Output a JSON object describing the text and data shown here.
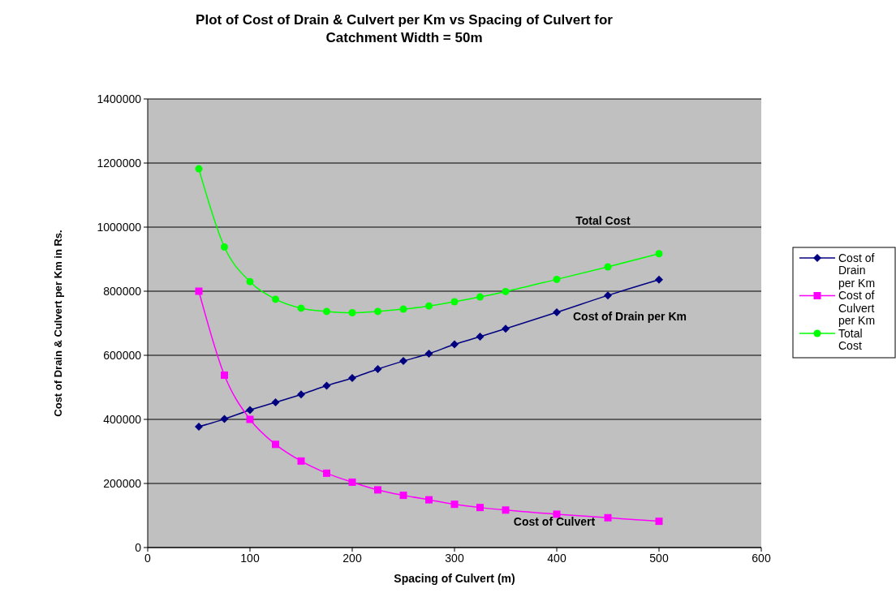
{
  "chart_data": {
    "type": "line",
    "title": "Plot of Cost of Drain & Culvert per Km vs  Spacing of Culvert  for Catchment Width = 50m",
    "xlabel": "Spacing of Culvert (m)",
    "ylabel": "Cost of Drain & Culvert per Km in Rs.",
    "x": [
      50,
      75,
      100,
      125,
      150,
      175,
      200,
      225,
      250,
      275,
      300,
      325,
      350,
      400,
      450,
      500
    ],
    "series": [
      {
        "name": "Cost of Drain per Km",
        "color": "#000080",
        "marker": "diamond",
        "values": [
          377000,
          401000,
          429000,
          453000,
          478000,
          505000,
          529000,
          557000,
          582000,
          605000,
          634000,
          658000,
          683000,
          734000,
          787000,
          836000
        ]
      },
      {
        "name": "Cost of Culvert per Km",
        "color": "#ff00ff",
        "marker": "square",
        "values": [
          800000,
          538000,
          400000,
          322000,
          270000,
          232000,
          204000,
          180000,
          163000,
          149000,
          135000,
          125000,
          117000,
          104000,
          93000,
          82000
        ]
      },
      {
        "name": "Total Cost",
        "color": "#00ff00",
        "marker": "circle",
        "values": [
          1182000,
          938000,
          830000,
          775000,
          747000,
          737000,
          733000,
          737000,
          744000,
          754000,
          767000,
          782000,
          799000,
          837000,
          876000,
          917000
        ]
      }
    ],
    "annotations": [
      "Total Cost",
      "Cost of Drain per Km",
      "Cost of Culvert"
    ],
    "xlim": [
      0,
      600
    ],
    "xticks": [
      0,
      100,
      200,
      300,
      400,
      500,
      600
    ],
    "ylim": [
      0,
      1400000
    ],
    "yticks": [
      0,
      200000,
      400000,
      600000,
      800000,
      1000000,
      1200000,
      1400000
    ],
    "grid": "y",
    "legend": "right"
  }
}
